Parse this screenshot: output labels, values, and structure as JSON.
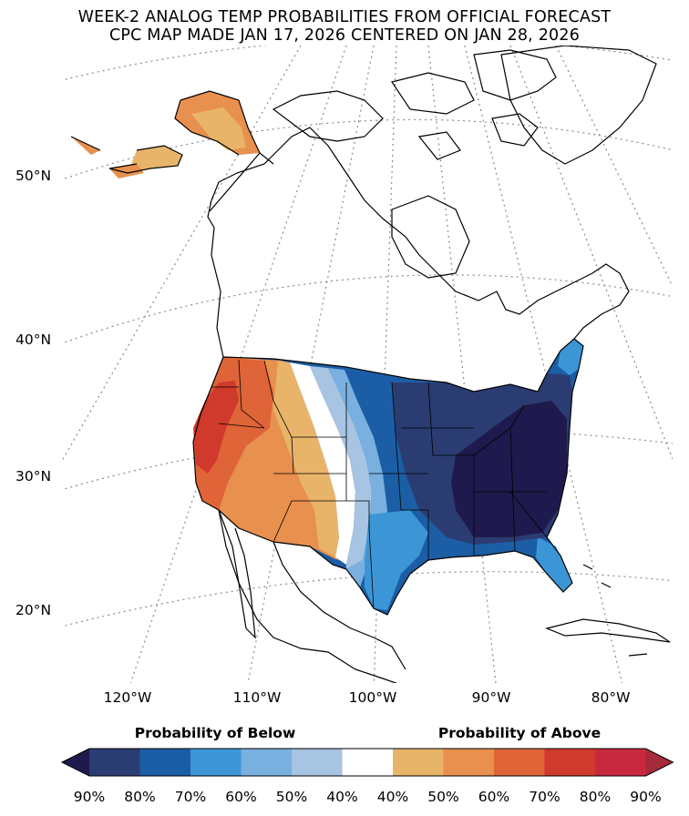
{
  "title": {
    "line1": "WEEK-2 ANALOG TEMP PROBABILITIES FROM OFFICIAL FORECAST",
    "line2": "CPC MAP MADE JAN 17, 2026 CENTERED ON JAN 28, 2026"
  },
  "latitude_labels": [
    "50°N",
    "40°N",
    "30°N",
    "20°N"
  ],
  "longitude_labels": [
    "120°W",
    "110°W",
    "100°W",
    "90°W",
    "80°W"
  ],
  "colorbar": {
    "below_label": "Probability of Below",
    "above_label": "Probability of Above",
    "ticks": [
      "90%",
      "80%",
      "70%",
      "60%",
      "50%",
      "40%",
      "40%",
      "50%",
      "60%",
      "70%",
      "80%",
      "90%"
    ],
    "below_colors": [
      "#1f1a4d",
      "#2b3c72",
      "#1b5ea5",
      "#3c96d6",
      "#79b0e0",
      "#a7c4e2"
    ],
    "neutral_color": "#ffffff",
    "above_colors": [
      "#e8b46a",
      "#e8904e",
      "#df6438",
      "#cf3a2c",
      "#c8283e",
      "#a52a3a"
    ]
  }
}
